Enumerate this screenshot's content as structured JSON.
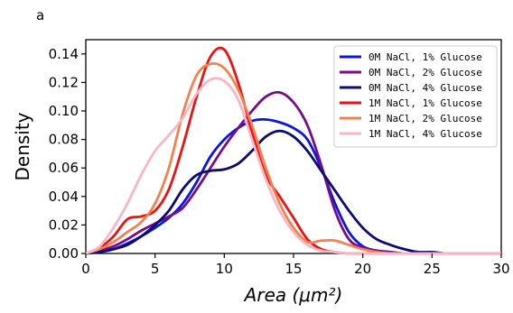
{
  "panel_label": "a",
  "chart_data": {
    "type": "line",
    "xlabel": "Area (μm²)",
    "ylabel": "Density",
    "xlim": [
      0,
      30
    ],
    "ylim": [
      0,
      0.15
    ],
    "xticks": [
      0,
      5,
      10,
      15,
      20,
      25,
      30
    ],
    "yticks": [
      0.0,
      0.02,
      0.04,
      0.06,
      0.08,
      0.1,
      0.12,
      0.14
    ],
    "ytick_labels": [
      "0.00",
      "0.02",
      "0.04",
      "0.06",
      "0.08",
      "0.10",
      "0.12",
      "0.14"
    ],
    "legend_position": "top-right",
    "series": [
      {
        "name": "0M NaCl, 1% Glucose",
        "color": "#0a14e6",
        "x": [
          0,
          1,
          2,
          3,
          4,
          5,
          6,
          7,
          8,
          9,
          10,
          11,
          12,
          13,
          14,
          15,
          16,
          17,
          18,
          19,
          20,
          21,
          22,
          23,
          24,
          25,
          26,
          27,
          28,
          29,
          30
        ],
        "y": [
          0.0,
          0.001,
          0.003,
          0.007,
          0.012,
          0.018,
          0.025,
          0.035,
          0.05,
          0.068,
          0.08,
          0.088,
          0.093,
          0.094,
          0.092,
          0.088,
          0.08,
          0.06,
          0.035,
          0.015,
          0.005,
          0.002,
          0.001,
          0.0,
          0.0,
          0.0,
          0.0,
          0.0,
          0.0,
          0.0,
          0.0
        ]
      },
      {
        "name": "0M NaCl, 2% Glucose",
        "color": "#7a0a8a",
        "x": [
          0,
          1,
          2,
          3,
          4,
          5,
          6,
          7,
          8,
          9,
          10,
          11,
          12,
          13,
          14,
          15,
          16,
          17,
          18,
          19,
          20,
          21,
          22,
          23,
          24,
          25,
          26,
          27,
          28,
          29,
          30
        ],
        "y": [
          0.0,
          0.002,
          0.005,
          0.01,
          0.016,
          0.021,
          0.026,
          0.032,
          0.045,
          0.06,
          0.075,
          0.088,
          0.1,
          0.11,
          0.113,
          0.106,
          0.09,
          0.062,
          0.03,
          0.01,
          0.004,
          0.002,
          0.001,
          0.0,
          0.0,
          0.0,
          0.0,
          0.0,
          0.0,
          0.0,
          0.0
        ]
      },
      {
        "name": "0M NaCl, 4% Glucose",
        "color": "#0b0b70",
        "x": [
          0,
          1,
          2,
          3,
          4,
          5,
          6,
          7,
          8,
          9,
          10,
          11,
          12,
          13,
          14,
          15,
          16,
          17,
          18,
          19,
          20,
          21,
          22,
          23,
          24,
          25,
          26,
          27,
          28,
          29,
          30
        ],
        "y": [
          0.0,
          0.001,
          0.003,
          0.006,
          0.012,
          0.02,
          0.03,
          0.045,
          0.055,
          0.058,
          0.059,
          0.063,
          0.072,
          0.082,
          0.086,
          0.082,
          0.072,
          0.058,
          0.044,
          0.03,
          0.018,
          0.01,
          0.006,
          0.003,
          0.001,
          0.001,
          0.0,
          0.0,
          0.0,
          0.0,
          0.0
        ]
      },
      {
        "name": "1M NaCl, 1% Glucose",
        "color": "#ee1111",
        "x": [
          0,
          1,
          2,
          3,
          4,
          5,
          6,
          7,
          8,
          9,
          10,
          11,
          12,
          13,
          14,
          15,
          16,
          17,
          18,
          19,
          20,
          21,
          22,
          23,
          24,
          25,
          26,
          27,
          28,
          29,
          30
        ],
        "y": [
          0.0,
          0.004,
          0.012,
          0.024,
          0.026,
          0.03,
          0.045,
          0.075,
          0.11,
          0.138,
          0.143,
          0.12,
          0.085,
          0.055,
          0.04,
          0.025,
          0.01,
          0.003,
          0.001,
          0.0,
          0.0,
          0.0,
          0.0,
          0.0,
          0.0,
          0.0,
          0.0,
          0.0,
          0.0,
          0.0,
          0.0
        ]
      },
      {
        "name": "1M NaCl, 2% Glucose",
        "color": "#f5804f",
        "x": [
          0,
          1,
          2,
          3,
          4,
          5,
          6,
          7,
          8,
          9,
          10,
          11,
          12,
          13,
          14,
          15,
          16,
          17,
          18,
          19,
          20,
          21,
          22,
          23,
          24,
          25,
          26,
          27,
          28,
          29,
          30
        ],
        "y": [
          0.0,
          0.003,
          0.008,
          0.015,
          0.022,
          0.035,
          0.06,
          0.098,
          0.125,
          0.133,
          0.13,
          0.115,
          0.09,
          0.06,
          0.035,
          0.018,
          0.008,
          0.009,
          0.009,
          0.006,
          0.003,
          0.001,
          0.0,
          0.0,
          0.0,
          0.0,
          0.0,
          0.0,
          0.0,
          0.0,
          0.0
        ]
      },
      {
        "name": "1M NaCl, 4% Glucose",
        "color": "#f7b6c6",
        "x": [
          0,
          1,
          2,
          3,
          4,
          5,
          6,
          7,
          8,
          9,
          10,
          11,
          12,
          13,
          14,
          15,
          16,
          17,
          18,
          19,
          20,
          21,
          22,
          23,
          24,
          25,
          26,
          27,
          28,
          29,
          30
        ],
        "y": [
          0.0,
          0.005,
          0.018,
          0.035,
          0.055,
          0.072,
          0.083,
          0.095,
          0.112,
          0.122,
          0.121,
          0.108,
          0.08,
          0.052,
          0.03,
          0.015,
          0.006,
          0.002,
          0.001,
          0.0,
          0.0,
          0.0,
          0.0,
          0.0,
          0.0,
          0.0,
          0.0,
          0.0,
          0.0,
          0.0,
          0.0
        ]
      }
    ]
  }
}
